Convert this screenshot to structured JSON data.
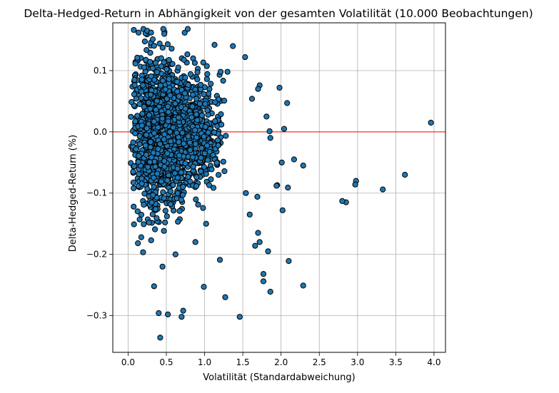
{
  "chart_data": {
    "type": "scatter",
    "title": "Delta-Hedged-Return in Abhängigkeit von der gesamten Volatilität (10.000 Beobachtungen)",
    "xlabel": "Volatilität (Standardabweichung)",
    "ylabel": "Delta-Hedged-Return (%)",
    "xlim": [
      -0.2,
      4.15
    ],
    "ylim": [
      -0.36,
      0.178
    ],
    "xticks": [
      0.0,
      0.5,
      1.0,
      1.5,
      2.0,
      2.5,
      3.0,
      3.5,
      4.0
    ],
    "xtick_labels": [
      "0.0",
      "0.5",
      "1.0",
      "1.5",
      "2.0",
      "2.5",
      "3.0",
      "3.5",
      "4.0"
    ],
    "yticks": [
      -0.3,
      -0.2,
      -0.1,
      0.0,
      0.1
    ],
    "ytick_labels": [
      "−0.3",
      "−0.2",
      "−0.1",
      "0.0",
      "0.1"
    ],
    "grid": true,
    "marker_color": "#1f77b4",
    "marker_edge_color": "#000000",
    "reference_line": {
      "y": 0.0,
      "color": "#ff0000"
    },
    "points": {
      "x": [
        3.96,
        3.62,
        3.33,
        2.98,
        2.97,
        2.85,
        2.8,
        2.29,
        2.29,
        2.1,
        2.09,
        2.08,
        2.04,
        2.02,
        2.01,
        1.98,
        1.95,
        1.94,
        1.86,
        1.85,
        1.86,
        1.83,
        1.81,
        1.77,
        1.77,
        1.72,
        1.72,
        1.7,
        1.7,
        1.69,
        1.66,
        1.62,
        1.59,
        1.53,
        1.46,
        1.27,
        1.2,
        1.3,
        1.13,
        0.99,
        0.42,
        0.4,
        0.52,
        0.7,
        0.72,
        0.34,
        0.45,
        0.62,
        0.88,
        1.02,
        1.54,
        1.37,
        1.21,
        0.85,
        0.2,
        0.25,
        0.3,
        0.78,
        0.46,
        2.17
      ],
      "y": [
        0.015,
        -0.07,
        -0.094,
        -0.08,
        -0.086,
        -0.115,
        -0.113,
        -0.251,
        -0.055,
        -0.211,
        -0.091,
        0.047,
        0.005,
        -0.128,
        -0.05,
        0.072,
        -0.087,
        -0.088,
        -0.261,
        0.001,
        -0.01,
        -0.195,
        0.025,
        -0.244,
        -0.232,
        -0.18,
        0.076,
        0.07,
        -0.165,
        -0.106,
        -0.186,
        0.054,
        -0.135,
        0.122,
        -0.302,
        -0.27,
        -0.209,
        0.098,
        0.142,
        -0.253,
        -0.336,
        -0.296,
        -0.298,
        -0.302,
        -0.292,
        -0.252,
        -0.22,
        -0.2,
        -0.18,
        -0.15,
        -0.1,
        0.14,
        0.098,
        0.12,
        0.168,
        0.165,
        0.162,
        0.168,
        0.168,
        -0.045
      ]
    },
    "cluster": {
      "count": 1600,
      "x_min": 0.02,
      "x_mode": 0.3,
      "x_max": 1.3,
      "y_min": -0.22,
      "y_max": 0.168
    }
  }
}
